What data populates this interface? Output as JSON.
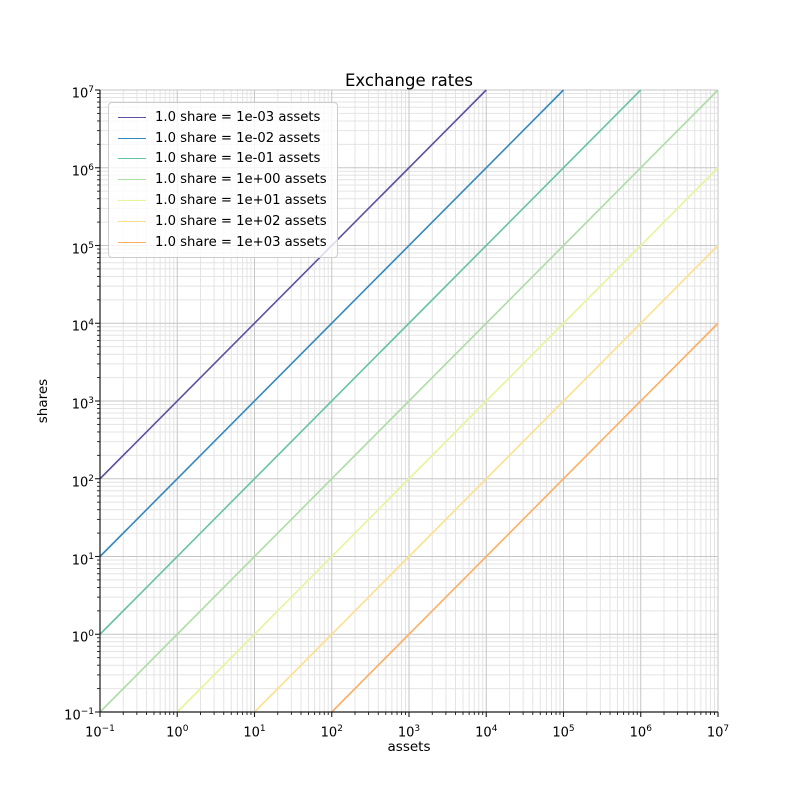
{
  "figure": {
    "background": "#ffffff"
  },
  "chart_data": {
    "type": "line",
    "title": "Exchange rates",
    "xlabel": "assets",
    "ylabel": "shares",
    "xscale": "log",
    "yscale": "log",
    "xlim": [
      0.1,
      10000000
    ],
    "ylim": [
      0.1,
      10000000
    ],
    "x_tick_exponents": [
      -1,
      0,
      1,
      2,
      3,
      4,
      5,
      6,
      7
    ],
    "y_tick_exponents": [
      -1,
      0,
      1,
      2,
      3,
      4,
      5,
      6,
      7
    ],
    "relation": "shares = assets / assets_per_share",
    "series": [
      {
        "label": "1.0 share = 1e-03 assets",
        "assets_per_share": 0.001,
        "color": "#5e4fa2"
      },
      {
        "label": "1.0 share = 1e-02 assets",
        "assets_per_share": 0.01,
        "color": "#3288bd"
      },
      {
        "label": "1.0 share = 1e-01 assets",
        "assets_per_share": 0.1,
        "color": "#66c2a5"
      },
      {
        "label": "1.0 share = 1e+00 assets",
        "assets_per_share": 1.0,
        "color": "#abdda4"
      },
      {
        "label": "1.0 share = 1e+01 assets",
        "assets_per_share": 10.0,
        "color": "#e6f598"
      },
      {
        "label": "1.0 share = 1e+02 assets",
        "assets_per_share": 100.0,
        "color": "#fee08b"
      },
      {
        "label": "1.0 share = 1e+03 assets",
        "assets_per_share": 1000.0,
        "color": "#fdae61"
      }
    ],
    "grid": {
      "major_color": "#c6c6c6",
      "minor_color": "#e4e4e4"
    },
    "spine_color": "#1a1a1a",
    "legend": {
      "position": "upper left",
      "border_color": "#cccccc",
      "background": "rgba(255,255,255,0.8)"
    }
  }
}
